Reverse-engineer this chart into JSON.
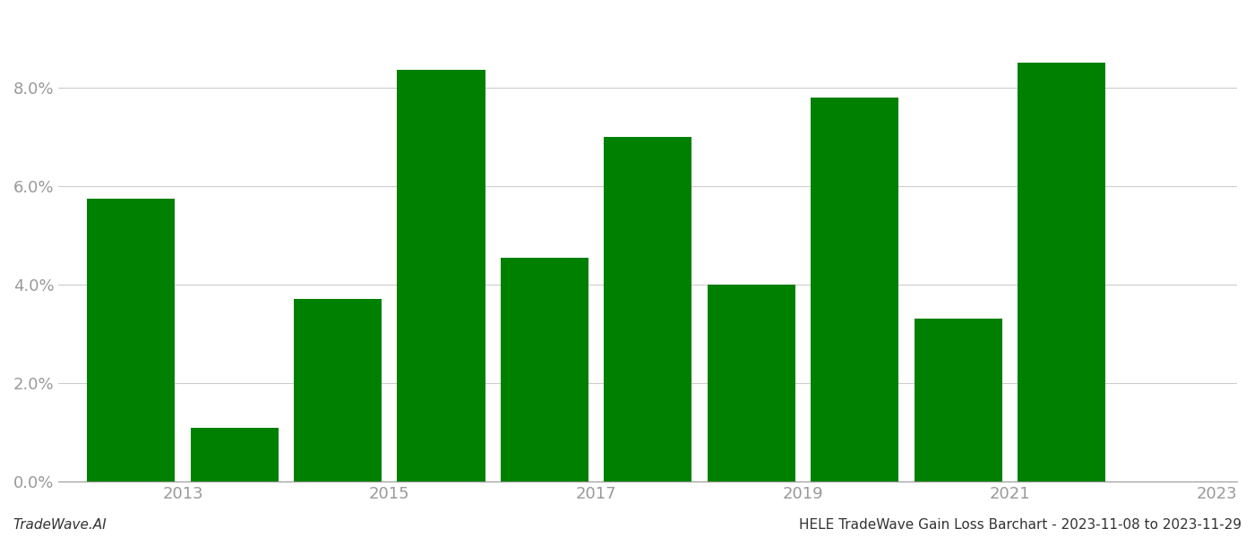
{
  "years": [
    2013,
    2014,
    2015,
    2016,
    2017,
    2018,
    2019,
    2020,
    2021,
    2022
  ],
  "values": [
    0.0575,
    0.011,
    0.037,
    0.0835,
    0.0455,
    0.07,
    0.04,
    0.078,
    0.033,
    0.085
  ],
  "bar_color": "#008000",
  "background_color": "#ffffff",
  "footnote_left": "TradeWave.AI",
  "footnote_right": "HELE TradeWave Gain Loss Barchart - 2023-11-08 to 2023-11-29",
  "ylim": [
    0,
    0.095
  ],
  "yticks": [
    0.0,
    0.02,
    0.04,
    0.06,
    0.08
  ],
  "xtick_positions": [
    2013.5,
    2015.5,
    2017.5,
    2019.5,
    2021.5,
    2023.5
  ],
  "xtick_labels": [
    "2013",
    "2015",
    "2017",
    "2019",
    "2021",
    "2023"
  ],
  "grid_color": "#cccccc",
  "tick_color": "#999999",
  "footnote_fontsize": 11,
  "bar_width": 0.85
}
